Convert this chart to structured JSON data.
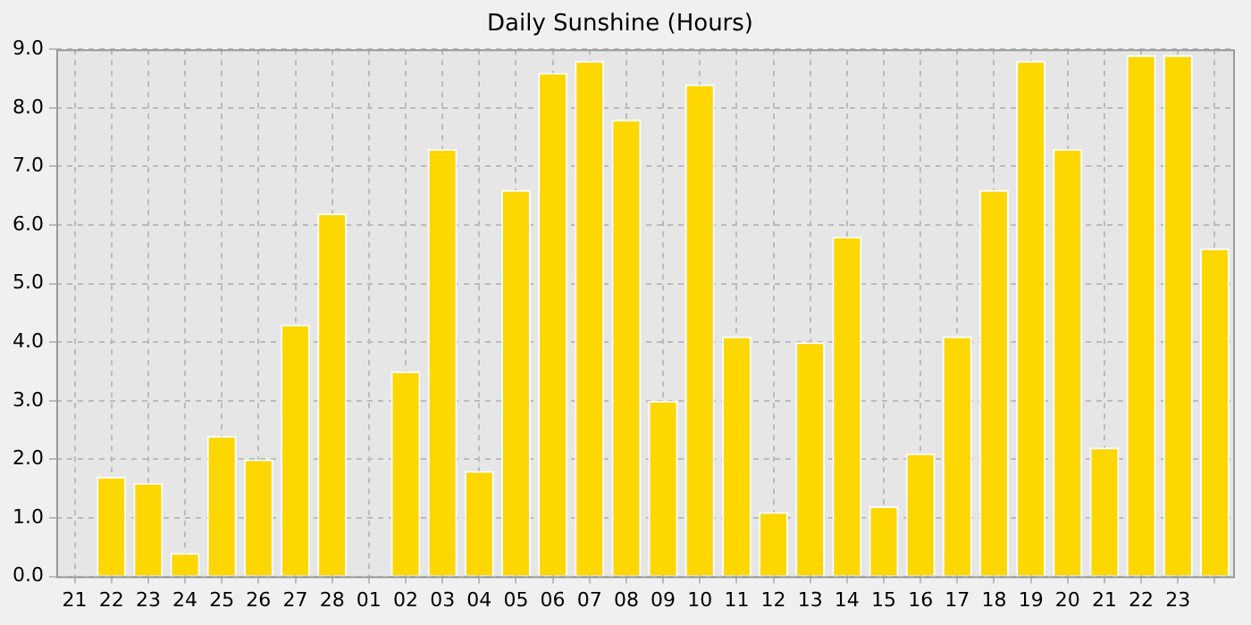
{
  "chart_data": {
    "type": "bar",
    "title": "Daily Sunshine (Hours)",
    "categories": [
      "21",
      "22",
      "23",
      "24",
      "25",
      "26",
      "27",
      "28",
      "01",
      "02",
      "03",
      "04",
      "05",
      "06",
      "07",
      "08",
      "09",
      "10",
      "11",
      "12",
      "13",
      "14",
      "15",
      "16",
      "17",
      "18",
      "19",
      "20",
      "21",
      "22",
      "23",
      null
    ],
    "values": [
      null,
      1.7,
      1.6,
      0.4,
      2.4,
      2.0,
      4.3,
      6.2,
      0,
      3.5,
      7.3,
      1.8,
      6.6,
      8.6,
      8.8,
      7.8,
      3.0,
      8.4,
      4.1,
      1.1,
      4.0,
      5.8,
      1.2,
      2.1,
      4.1,
      6.6,
      8.8,
      7.3,
      2.2,
      8.9,
      8.9,
      5.6
    ],
    "color": "#ffd700",
    "ylim": [
      0,
      9
    ],
    "yticks": [
      {
        "value": 0,
        "label": "0.0"
      },
      {
        "value": 1,
        "label": "1.0"
      },
      {
        "value": 2,
        "label": "2.0"
      },
      {
        "value": 3,
        "label": "3.0"
      },
      {
        "value": 4,
        "label": "4.0"
      },
      {
        "value": 5,
        "label": "5.0"
      },
      {
        "value": 6,
        "label": "6.0"
      },
      {
        "value": 7,
        "label": "7.0"
      },
      {
        "value": 8,
        "label": "8.0"
      },
      {
        "value": 9,
        "label": "9.0"
      }
    ],
    "grid": true
  }
}
